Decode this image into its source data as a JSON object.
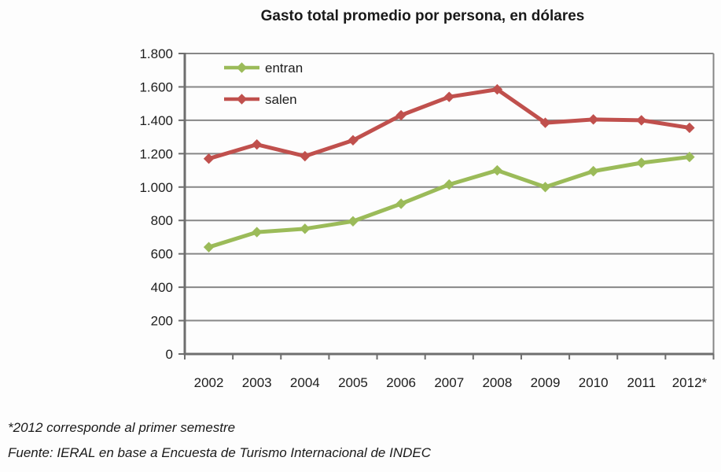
{
  "title": "Gasto total promedio por persona, en dólares",
  "footnotes": [
    "*2012 corresponde al primer semestre",
    "Fuente: IERAL en base a Encuesta de Turismo Internacional de INDEC"
  ],
  "colors": {
    "entran": "#9BBB59",
    "salen": "#C0504D",
    "gridline": "#878787",
    "axis": "#6E6E6E",
    "text": "#1D1D1D",
    "background": "#FDFDFD"
  },
  "chart_data": {
    "type": "line",
    "title": "Gasto total promedio por persona, en dólares",
    "categories": [
      "2002",
      "2003",
      "2004",
      "2005",
      "2006",
      "2007",
      "2008",
      "2009",
      "2010",
      "2011",
      "2012*"
    ],
    "series": [
      {
        "name": "entran",
        "color": "#9BBB59",
        "values": [
          640,
          730,
          750,
          795,
          900,
          1015,
          1100,
          1000,
          1095,
          1145,
          1180
        ]
      },
      {
        "name": "salen",
        "color": "#C0504D",
        "values": [
          1170,
          1255,
          1185,
          1280,
          1430,
          1540,
          1585,
          1385,
          1405,
          1400,
          1355
        ]
      }
    ],
    "ylim": [
      0,
      1800
    ],
    "ytick_step": 200,
    "ytick_labels": [
      "0",
      "200",
      "400",
      "600",
      "800",
      "1.000",
      "1.200",
      "1.400",
      "1.600",
      "1.800"
    ],
    "xlabel": "",
    "ylabel": "",
    "grid": true,
    "legend_position": "inside-top-left",
    "marker": "diamond"
  }
}
